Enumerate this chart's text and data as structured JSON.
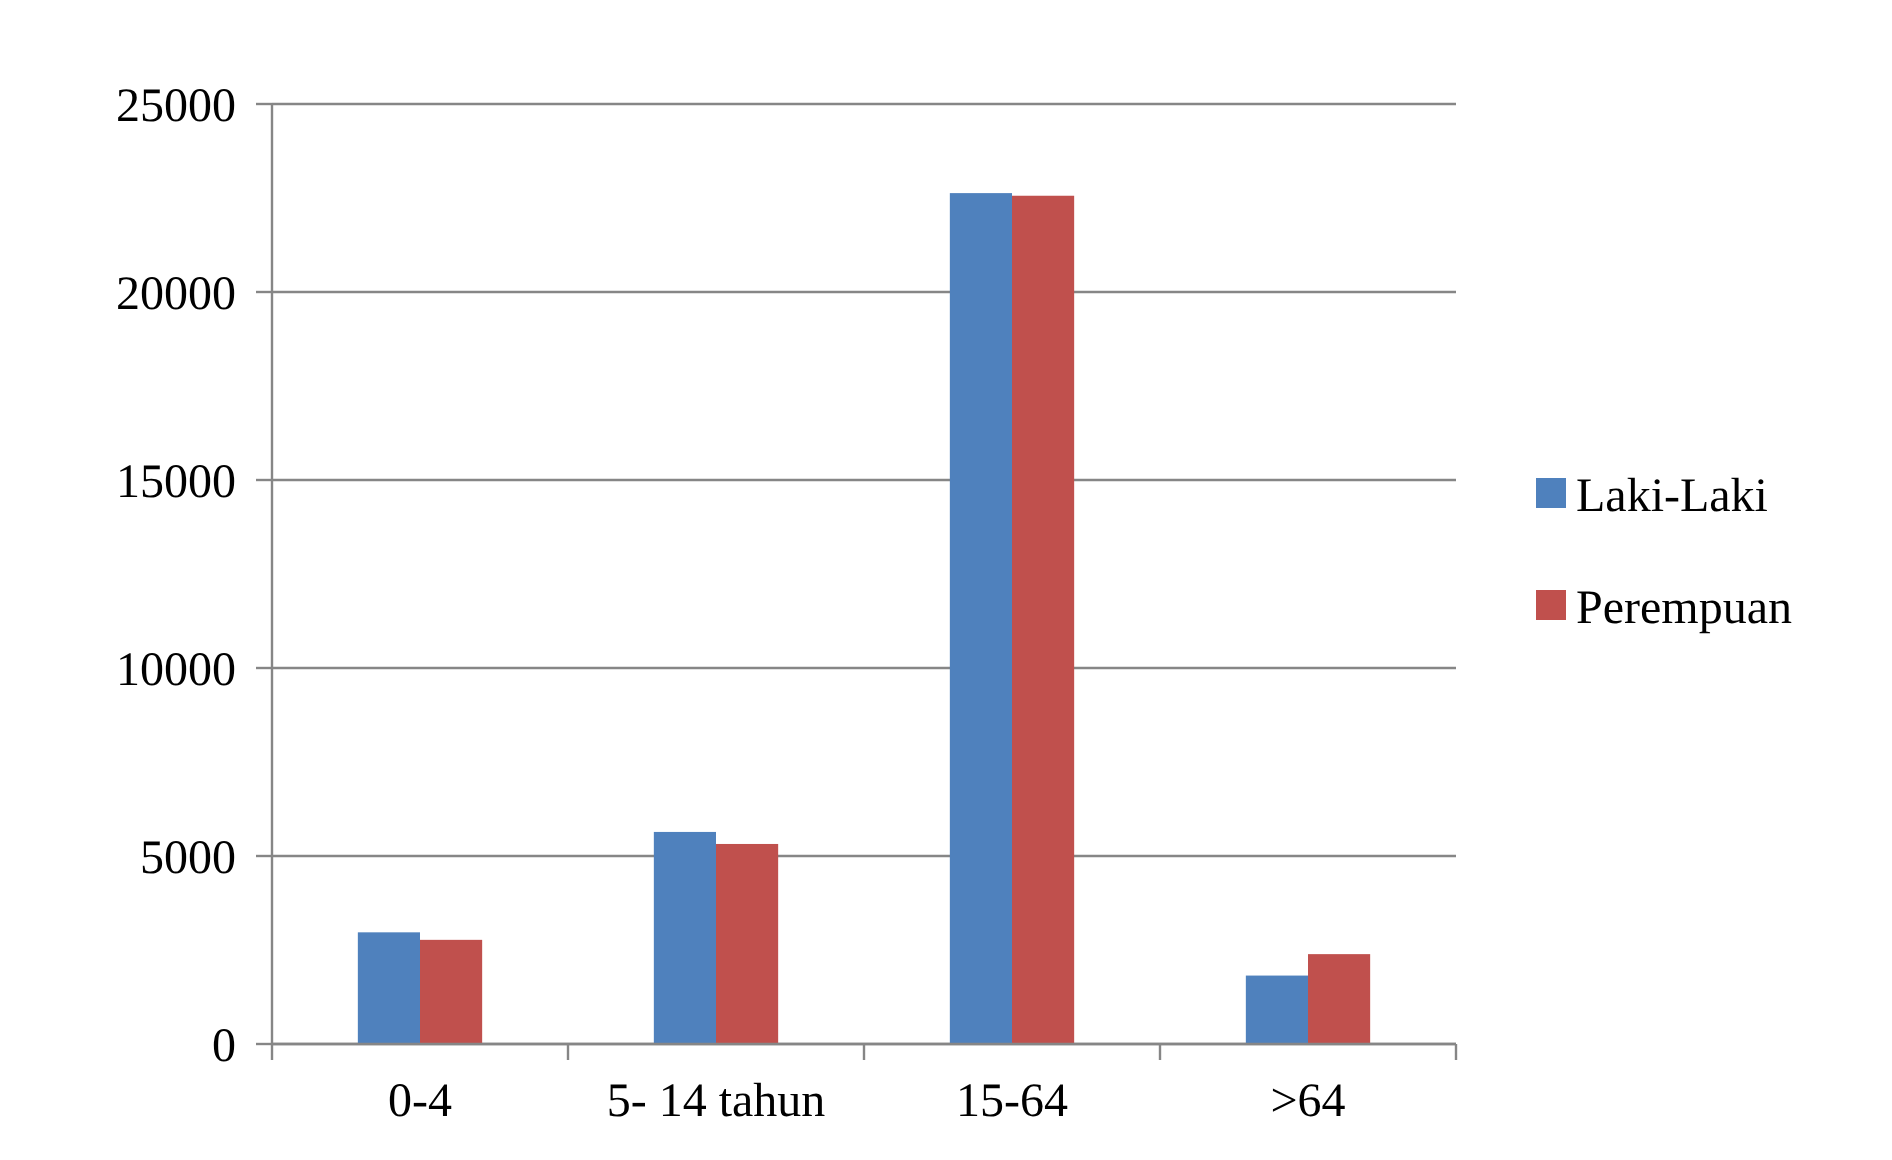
{
  "chart_data": {
    "type": "bar",
    "categories": [
      "0-4",
      "5- 14 tahun",
      "15-64",
      ">64"
    ],
    "series": [
      {
        "name": "Laki-Laki",
        "color": "#4f81bd",
        "values": [
          2970,
          5640,
          22630,
          1820
        ]
      },
      {
        "name": "Perempuan",
        "color": "#c0504d",
        "values": [
          2770,
          5320,
          22560,
          2390
        ]
      }
    ],
    "ylim": [
      0,
      25000
    ],
    "yticks": [
      0,
      5000,
      10000,
      15000,
      20000,
      25000
    ],
    "grid": "y",
    "legend": "right"
  }
}
